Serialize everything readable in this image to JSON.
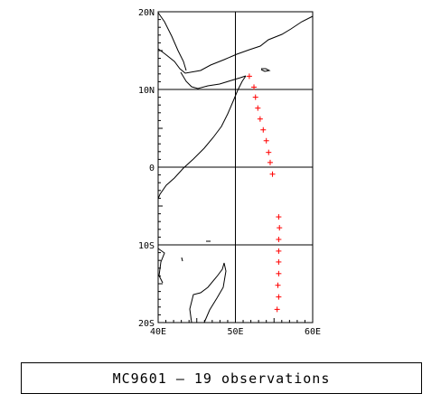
{
  "map": {
    "lon_range": [
      40,
      60
    ],
    "lat_range": [
      -20,
      20
    ],
    "grid_lons": [
      50
    ],
    "grid_lats": [
      10,
      0,
      -10
    ],
    "lon_labels": [
      {
        "lon": 40,
        "text": "40E"
      },
      {
        "lon": 50,
        "text": "50E"
      },
      {
        "lon": 60,
        "text": "60E"
      }
    ],
    "lat_labels": [
      {
        "lat": 20,
        "text": "20N"
      },
      {
        "lat": 10,
        "text": "10N"
      },
      {
        "lat": 0,
        "text": "0"
      },
      {
        "lat": -10,
        "text": "10S"
      },
      {
        "lat": -20,
        "text": "20S"
      }
    ],
    "coastline_color": "#000000",
    "grid_color": "#000000"
  },
  "observations": {
    "marker": "+",
    "color": "#ff0000",
    "points": [
      {
        "lon": 51.8,
        "lat": 11.7
      },
      {
        "lon": 52.4,
        "lat": 10.3
      },
      {
        "lon": 52.6,
        "lat": 9.0
      },
      {
        "lon": 52.9,
        "lat": 7.6
      },
      {
        "lon": 53.2,
        "lat": 6.2
      },
      {
        "lon": 53.6,
        "lat": 4.8
      },
      {
        "lon": 54.0,
        "lat": 3.4
      },
      {
        "lon": 54.3,
        "lat": 1.9
      },
      {
        "lon": 54.5,
        "lat": 0.6
      },
      {
        "lon": 54.8,
        "lat": -0.9
      },
      {
        "lon": 55.6,
        "lat": -6.4
      },
      {
        "lon": 55.7,
        "lat": -7.8
      },
      {
        "lon": 55.6,
        "lat": -9.3
      },
      {
        "lon": 55.6,
        "lat": -10.8
      },
      {
        "lon": 55.6,
        "lat": -12.2
      },
      {
        "lon": 55.6,
        "lat": -13.7
      },
      {
        "lon": 55.5,
        "lat": -15.2
      },
      {
        "lon": 55.6,
        "lat": -16.7
      },
      {
        "lon": 55.4,
        "lat": -18.3
      }
    ]
  },
  "caption": {
    "text": "MC9601 — 19 observations"
  }
}
